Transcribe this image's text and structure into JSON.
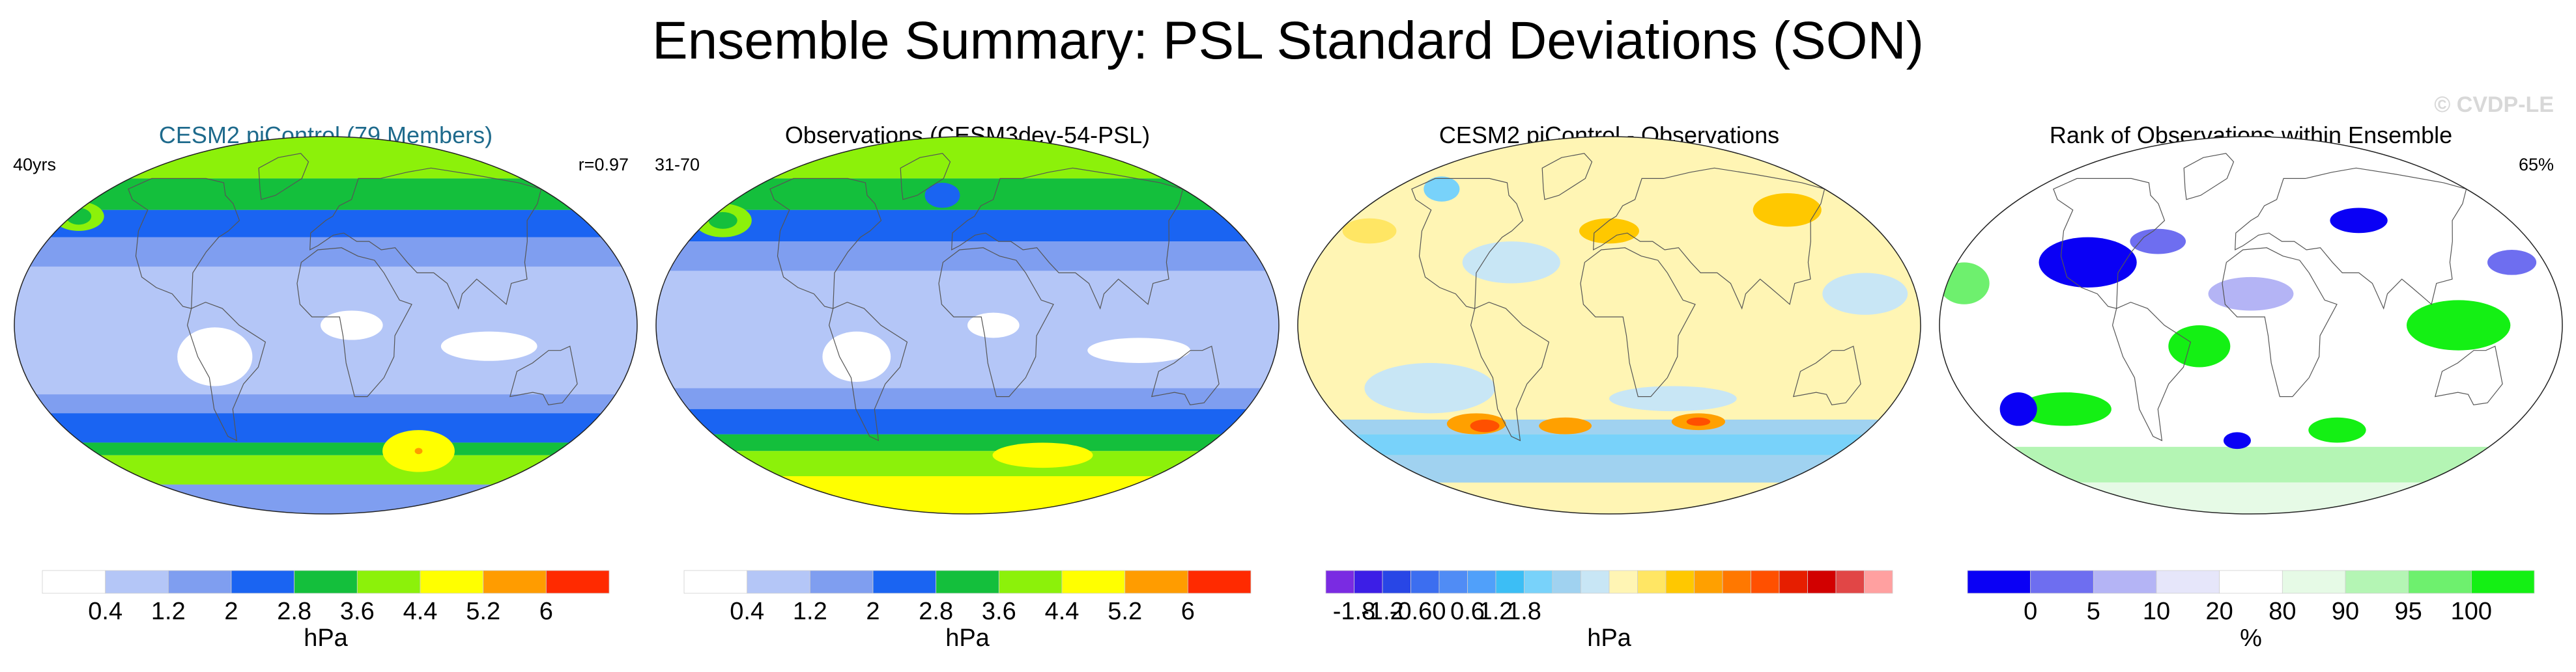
{
  "title": "Ensemble Summary: PSL Standard Deviations (SON)",
  "watermark": "© CVDP-LE",
  "chart_data": [
    {
      "type": "heatmap",
      "title": "CESM2 piControl (79 Members)",
      "title_color": "#1e6a8c",
      "left_label": "40yrs",
      "right_label": "r=0.97",
      "projection": "Robinson (global)",
      "colorbar": {
        "unit": "hPa",
        "tick_labels": [
          "0.4",
          "1.2",
          "2",
          "2.8",
          "3.6",
          "4.4",
          "5.2",
          "6"
        ],
        "colors": [
          "#ffffff",
          "#b4c6f7",
          "#7f9ef0",
          "#1a64f2",
          "#14bf3c",
          "#8cf10a",
          "#ffff00",
          "#ff9c00",
          "#ff2a00"
        ]
      },
      "field": {
        "base_color": "#b4c6f7",
        "bands": [
          {
            "lat_from": 70,
            "lat_to": 90,
            "color": "#8cf10a"
          },
          {
            "lat_from": 55,
            "lat_to": 70,
            "color": "#14bf3c"
          },
          {
            "lat_from": 42,
            "lat_to": 55,
            "color": "#1a64f2"
          },
          {
            "lat_from": 28,
            "lat_to": 42,
            "color": "#7f9ef0"
          },
          {
            "lat_from": -33,
            "lat_to": -42,
            "color": "#7f9ef0"
          },
          {
            "lat_from": -42,
            "lat_to": -56,
            "color": "#1a64f2"
          },
          {
            "lat_from": -56,
            "lat_to": -62,
            "color": "#14bf3c"
          },
          {
            "lat_from": -62,
            "lat_to": -76,
            "color": "#8cf10a"
          },
          {
            "lat_from": -76,
            "lat_to": -90,
            "color": "#7f9ef0"
          }
        ],
        "blobs": [
          {
            "lon": -175,
            "lat": 52,
            "rlon": 18,
            "rlat": 7,
            "color": "#8cf10a"
          },
          {
            "lon": -175,
            "lat": 52,
            "rlon": 9,
            "rlat": 4,
            "color": "#14bf3c"
          },
          {
            "lon": 72,
            "lat": -60,
            "rlon": 28,
            "rlat": 10,
            "color": "#ffff00"
          },
          {
            "lon": 72,
            "lat": -60,
            "rlon": 3,
            "rlat": 1.5,
            "color": "#ff9c00"
          },
          {
            "lon": 95,
            "lat": -10,
            "rlon": 28,
            "rlat": 7,
            "color": "#ffffff"
          },
          {
            "lon": -65,
            "lat": -15,
            "rlon": 22,
            "rlat": 14,
            "color": "#ffffff"
          },
          {
            "lon": 15,
            "lat": 0,
            "rlon": 18,
            "rlat": 7,
            "color": "#ffffff"
          }
        ]
      }
    },
    {
      "type": "heatmap",
      "title": "Observations (CESM3dev-54-PSL)",
      "title_color": "#000000",
      "left_label": "31-70",
      "right_label": "",
      "projection": "Robinson (global)",
      "colorbar": {
        "unit": "hPa",
        "tick_labels": [
          "0.4",
          "1.2",
          "2",
          "2.8",
          "3.6",
          "4.4",
          "5.2",
          "6"
        ],
        "colors": [
          "#ffffff",
          "#b4c6f7",
          "#7f9ef0",
          "#1a64f2",
          "#14bf3c",
          "#8cf10a",
          "#ffff00",
          "#ff9c00",
          "#ff2a00"
        ]
      },
      "field": {
        "base_color": "#b4c6f7",
        "bands": [
          {
            "lat_from": 70,
            "lat_to": 90,
            "color": "#8cf10a"
          },
          {
            "lat_from": 55,
            "lat_to": 70,
            "color": "#14bf3c"
          },
          {
            "lat_from": 40,
            "lat_to": 55,
            "color": "#1a64f2"
          },
          {
            "lat_from": 26,
            "lat_to": 40,
            "color": "#7f9ef0"
          },
          {
            "lat_from": -30,
            "lat_to": -40,
            "color": "#7f9ef0"
          },
          {
            "lat_from": -40,
            "lat_to": -52,
            "color": "#1a64f2"
          },
          {
            "lat_from": -52,
            "lat_to": -60,
            "color": "#14bf3c"
          },
          {
            "lat_from": -60,
            "lat_to": -72,
            "color": "#8cf10a"
          },
          {
            "lat_from": -72,
            "lat_to": -90,
            "color": "#ffff00"
          }
        ],
        "blobs": [
          {
            "lon": -170,
            "lat": 50,
            "rlon": 20,
            "rlat": 8,
            "color": "#8cf10a"
          },
          {
            "lon": -170,
            "lat": 50,
            "rlon": 10,
            "rlat": 4,
            "color": "#14bf3c"
          },
          {
            "lon": -20,
            "lat": 62,
            "rlon": 14,
            "rlat": 6,
            "color": "#1a64f2"
          },
          {
            "lon": 60,
            "lat": -62,
            "rlon": 40,
            "rlat": 6,
            "color": "#ffff00"
          },
          {
            "lon": 100,
            "lat": -12,
            "rlon": 30,
            "rlat": 6,
            "color": "#ffffff"
          },
          {
            "lon": -65,
            "lat": -15,
            "rlon": 20,
            "rlat": 12,
            "color": "#ffffff"
          },
          {
            "lon": 15,
            "lat": 0,
            "rlon": 15,
            "rlat": 6,
            "color": "#ffffff"
          }
        ]
      }
    },
    {
      "type": "heatmap",
      "title": "CESM2 piControl - Observations",
      "title_color": "#000000",
      "left_label": "",
      "right_label": "",
      "projection": "Robinson (global)",
      "colorbar": {
        "unit": "hPa",
        "tick_labels": [
          "-1.8",
          "-1.2",
          "-0.6",
          "0",
          "0.6",
          "1.2",
          "1.8"
        ],
        "colors": [
          "#7a2be2",
          "#3c1ee6",
          "#2846e6",
          "#3c6ef0",
          "#508cf5",
          "#50a0fa",
          "#3cbef5",
          "#78d2fa",
          "#a0d2f0",
          "#c8e6f5",
          "#fff5b4",
          "#ffe664",
          "#ffc800",
          "#ffa000",
          "#ff7800",
          "#ff5000",
          "#e61e00",
          "#d20000",
          "#e14646",
          "#ffa0a0"
        ]
      },
      "field": {
        "base_color": "#fff5b4",
        "bands": [
          {
            "lat_from": -45,
            "lat_to": -52,
            "color": "#a0d2f0"
          },
          {
            "lat_from": -52,
            "lat_to": -62,
            "color": "#78d2fa"
          },
          {
            "lat_from": -62,
            "lat_to": -75,
            "color": "#a0d2f0"
          }
        ],
        "blobs": [
          {
            "lon": -110,
            "lat": -30,
            "rlon": 40,
            "rlat": 12,
            "color": "#c8e6f5"
          },
          {
            "lon": 40,
            "lat": -35,
            "rlon": 40,
            "rlat": 6,
            "color": "#c8e6f5"
          },
          {
            "lon": -60,
            "lat": 30,
            "rlon": 30,
            "rlat": 10,
            "color": "#c8e6f5"
          },
          {
            "lon": 150,
            "lat": 15,
            "rlon": 25,
            "rlat": 10,
            "color": "#c8e6f5"
          },
          {
            "lon": -90,
            "lat": -47,
            "rlon": 20,
            "rlat": 5,
            "color": "#ffa000"
          },
          {
            "lon": -85,
            "lat": -48,
            "rlon": 10,
            "rlat": 3,
            "color": "#ff5000"
          },
          {
            "lon": -30,
            "lat": -48,
            "rlon": 18,
            "rlat": 4,
            "color": "#ffa000"
          },
          {
            "lon": 60,
            "lat": -46,
            "rlon": 18,
            "rlat": 4,
            "color": "#ffa000"
          },
          {
            "lon": 60,
            "lat": -46,
            "rlon": 8,
            "rlat": 2,
            "color": "#ff5000"
          },
          {
            "lon": 130,
            "lat": 55,
            "rlon": 25,
            "rlat": 8,
            "color": "#ffc800"
          },
          {
            "lon": 0,
            "lat": 45,
            "rlon": 20,
            "rlat": 6,
            "color": "#ffc800"
          },
          {
            "lon": -160,
            "lat": 45,
            "rlon": 18,
            "rlat": 6,
            "color": "#ffe664"
          },
          {
            "lon": -140,
            "lat": 65,
            "rlon": 15,
            "rlat": 6,
            "color": "#78d2fa"
          }
        ]
      }
    },
    {
      "type": "heatmap",
      "title": "Rank of Observations within Ensemble",
      "title_color": "#000000",
      "left_label": "",
      "right_label": "65%",
      "projection": "Robinson (global)",
      "colorbar": {
        "unit": "%",
        "tick_labels": [
          "0",
          "5",
          "10",
          "20",
          "80",
          "90",
          "95",
          "100"
        ],
        "colors": [
          "#0a00f5",
          "#6e6ef0",
          "#b4b4f5",
          "#e6e6fa",
          "#ffffff",
          "#e6fae6",
          "#b4f5b4",
          "#6ef06e",
          "#14f014"
        ]
      },
      "field": {
        "base_color": "#ffffff",
        "bands": [
          {
            "lat_from": -58,
            "lat_to": -75,
            "color": "#b4f5b4"
          },
          {
            "lat_from": -75,
            "lat_to": -90,
            "color": "#e6fae6"
          }
        ],
        "blobs": [
          {
            "lon": 120,
            "lat": 0,
            "rlon": 30,
            "rlat": 12,
            "color": "#14f014"
          },
          {
            "lon": -30,
            "lat": -10,
            "rlon": 18,
            "rlat": 10,
            "color": "#14f014"
          },
          {
            "lon": -120,
            "lat": -40,
            "rlon": 30,
            "rlat": 8,
            "color": "#14f014"
          },
          {
            "lon": 60,
            "lat": -50,
            "rlon": 20,
            "rlat": 6,
            "color": "#14f014"
          },
          {
            "lon": -100,
            "lat": 30,
            "rlon": 30,
            "rlat": 12,
            "color": "#0a00f5"
          },
          {
            "lon": 75,
            "lat": 50,
            "rlon": 20,
            "rlat": 6,
            "color": "#0a00f5"
          },
          {
            "lon": -150,
            "lat": -40,
            "rlon": 12,
            "rlat": 8,
            "color": "#0a00f5"
          },
          {
            "lon": -10,
            "lat": -55,
            "rlon": 10,
            "rlat": 4,
            "color": "#0a00f5"
          },
          {
            "lon": 160,
            "lat": 30,
            "rlon": 15,
            "rlat": 6,
            "color": "#6e6ef0"
          },
          {
            "lon": -60,
            "lat": 40,
            "rlon": 18,
            "rlat": 6,
            "color": "#6e6ef0"
          },
          {
            "lon": 0,
            "lat": 15,
            "rlon": 25,
            "rlat": 8,
            "color": "#b4b4f5"
          },
          {
            "lon": -170,
            "lat": 20,
            "rlon": 15,
            "rlat": 10,
            "color": "#6ef06e"
          }
        ]
      }
    }
  ]
}
